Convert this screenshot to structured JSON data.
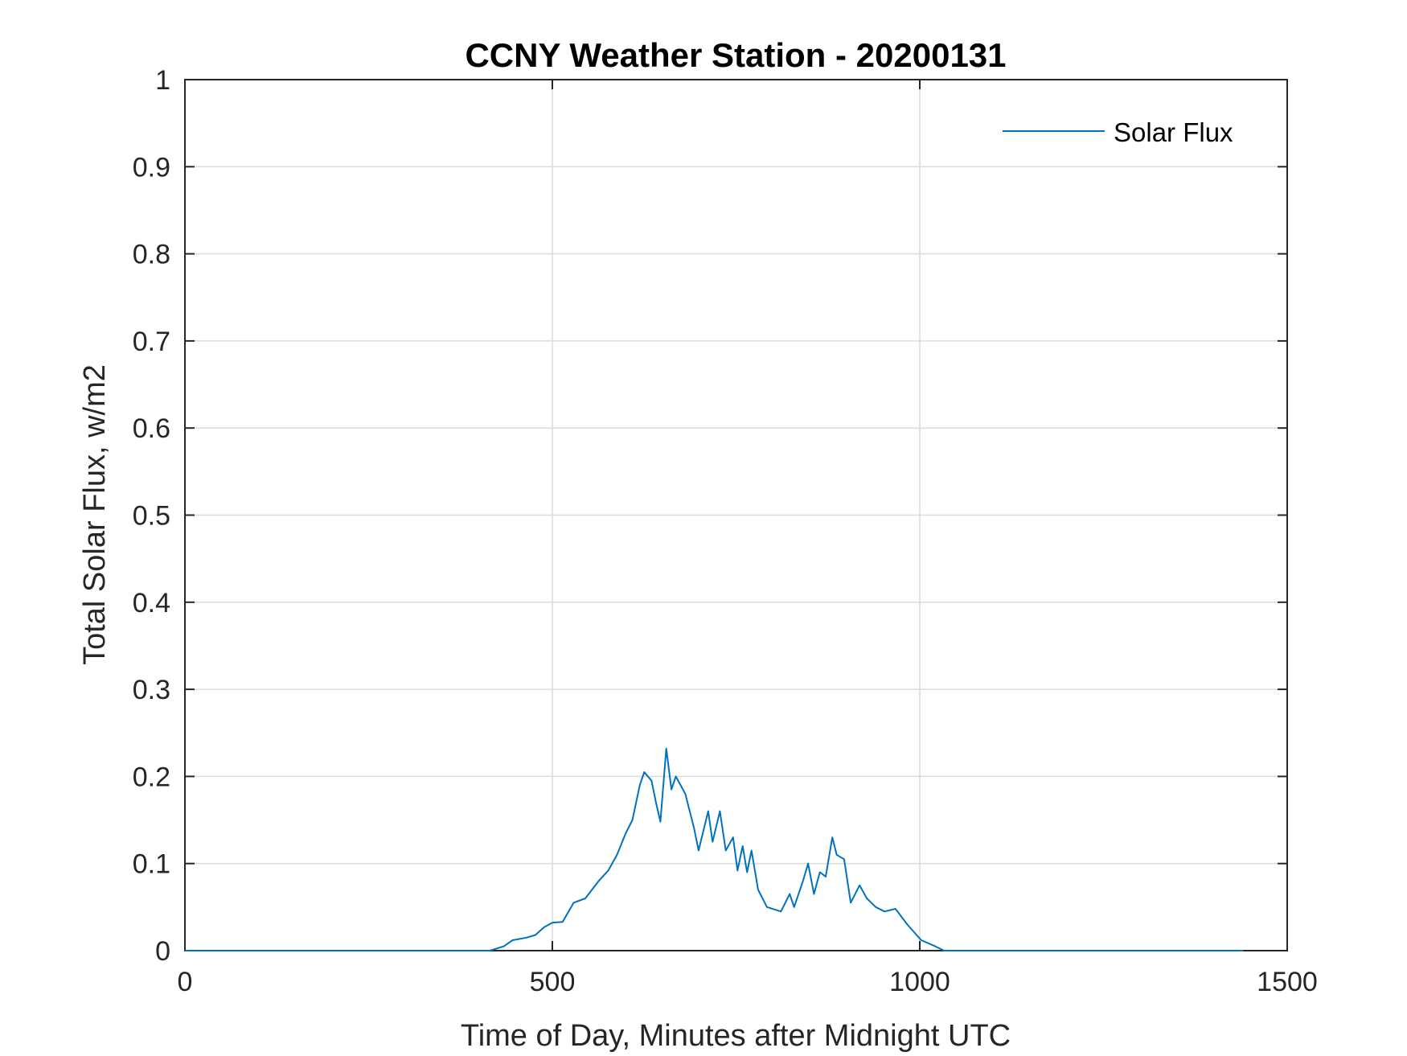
{
  "chart_data": {
    "type": "line",
    "title": "CCNY Weather Station - 20200131",
    "xlabel": "Time of Day, Minutes after Midnight UTC",
    "ylabel": "Total Solar Flux, w/m2",
    "xlim": [
      0,
      1500
    ],
    "ylim": [
      0,
      1
    ],
    "xticks": [
      0,
      500,
      1000,
      1500
    ],
    "xtick_labels": [
      "0",
      "500",
      "1000",
      "1500"
    ],
    "yticks": [
      0,
      0.1,
      0.2,
      0.3,
      0.4,
      0.5,
      0.6,
      0.7,
      0.8,
      0.9,
      1
    ],
    "ytick_labels": [
      "0",
      "0.1",
      "0.2",
      "0.3",
      "0.4",
      "0.5",
      "0.6",
      "0.7",
      "0.8",
      "0.9",
      "1"
    ],
    "grid": true,
    "legend_position": "top-right",
    "series": [
      {
        "name": "Solar Flux",
        "color": "#0072BD",
        "x": [
          0,
          415,
          434,
          446,
          465,
          477,
          489,
          500,
          514,
          529,
          545,
          563,
          576,
          588,
          600,
          609,
          619,
          625,
          635,
          641,
          647,
          655,
          662,
          668,
          681,
          693,
          699,
          712,
          718,
          728,
          736,
          746,
          752,
          759,
          765,
          771,
          780,
          792,
          811,
          823,
          829,
          841,
          848,
          856,
          864,
          872,
          881,
          887,
          897,
          906,
          918,
          928,
          940,
          952,
          967,
          983,
          1002,
          1021,
          1033,
          1440
        ],
        "y": [
          0,
          0,
          0.005,
          0.012,
          0.015,
          0.018,
          0.027,
          0.032,
          0.033,
          0.055,
          0.06,
          0.08,
          0.092,
          0.11,
          0.135,
          0.15,
          0.19,
          0.205,
          0.195,
          0.17,
          0.148,
          0.232,
          0.185,
          0.2,
          0.18,
          0.14,
          0.115,
          0.16,
          0.125,
          0.16,
          0.115,
          0.13,
          0.092,
          0.12,
          0.09,
          0.115,
          0.07,
          0.05,
          0.045,
          0.065,
          0.05,
          0.08,
          0.1,
          0.065,
          0.09,
          0.085,
          0.13,
          0.11,
          0.105,
          0.055,
          0.075,
          0.06,
          0.05,
          0.045,
          0.048,
          0.03,
          0.012,
          0.005,
          0,
          0
        ]
      }
    ]
  }
}
